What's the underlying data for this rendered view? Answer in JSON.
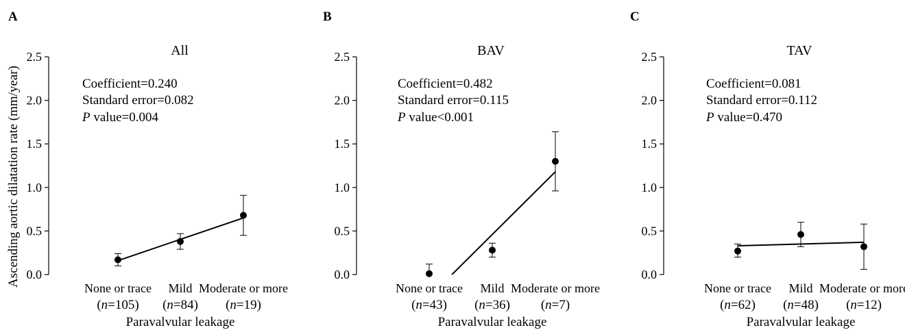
{
  "shared": {
    "ylabel": "Ascending aortic dilatation rate (mm/year)",
    "xlabel": "Paravalvular leakage",
    "yticks": [
      "0.0",
      "0.5",
      "1.0",
      "1.5",
      "2.0",
      "2.5"
    ],
    "categories": [
      "None or trace",
      "Mild",
      "Moderate or more"
    ],
    "stat_labels": {
      "coef": "Coefficient=",
      "se": "Standard error=",
      "p_italic": "P",
      "p_rest": " value"
    },
    "n_italic": "n"
  },
  "chart_data": [
    {
      "type": "scatter",
      "panel": "A",
      "title": "All",
      "categories": [
        "None or trace",
        "Mild",
        "Moderate or more"
      ],
      "n": [
        "105",
        "84",
        "19"
      ],
      "values": [
        0.17,
        0.38,
        0.68
      ],
      "err_low": [
        0.1,
        0.29,
        0.45
      ],
      "err_high": [
        0.24,
        0.47,
        0.91
      ],
      "fit": {
        "start": 0.16,
        "end": 0.65
      },
      "ylim": [
        0,
        2.5
      ],
      "stats": {
        "coef": "0.240",
        "se": "0.082",
        "p": "=0.004"
      }
    },
    {
      "type": "scatter",
      "panel": "B",
      "title": "BAV",
      "categories": [
        "None or trace",
        "Mild",
        "Moderate or more"
      ],
      "n": [
        "43",
        "36",
        "7"
      ],
      "values": [
        0.01,
        0.28,
        1.3
      ],
      "err_low": [
        -0.1,
        0.2,
        0.96
      ],
      "err_high": [
        0.12,
        0.36,
        1.64
      ],
      "fit": {
        "start": -0.26,
        "end": 1.18
      },
      "ylim": [
        0,
        2.5
      ],
      "stats": {
        "coef": "0.482",
        "se": "0.115",
        "p": "<0.001"
      }
    },
    {
      "type": "scatter",
      "panel": "C",
      "title": "TAV",
      "categories": [
        "None or trace",
        "Mild",
        "Moderate or more"
      ],
      "n": [
        "62",
        "48",
        "12"
      ],
      "values": [
        0.27,
        0.46,
        0.32
      ],
      "err_low": [
        0.2,
        0.32,
        0.06
      ],
      "err_high": [
        0.35,
        0.6,
        0.58
      ],
      "fit": {
        "start": 0.33,
        "end": 0.37
      },
      "ylim": [
        0,
        2.5
      ],
      "stats": {
        "coef": "0.081",
        "se": "0.112",
        "p": "=0.470"
      }
    }
  ]
}
